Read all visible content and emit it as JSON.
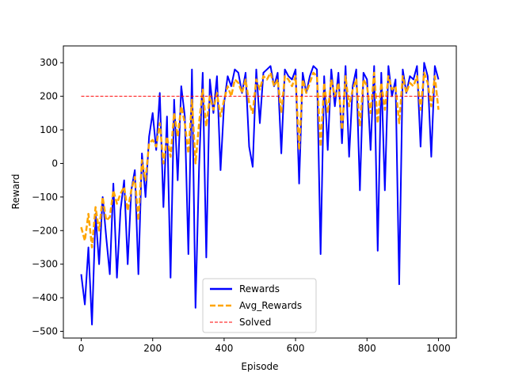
{
  "chart_data": {
    "type": "line",
    "title": "",
    "xlabel": "Episode",
    "ylabel": "Reward",
    "xlim": [
      -50,
      1050
    ],
    "ylim": [
      -520,
      350
    ],
    "x_ticks": [
      0,
      200,
      400,
      600,
      800,
      1000
    ],
    "y_ticks": [
      -500,
      -400,
      -300,
      -200,
      -100,
      0,
      100,
      200,
      300
    ],
    "legend_position": "lower-center",
    "series": [
      {
        "name": "Rewards",
        "color": "#0000ff",
        "style": "solid",
        "x": [
          0,
          10,
          20,
          30,
          40,
          50,
          60,
          70,
          80,
          90,
          100,
          110,
          120,
          130,
          140,
          150,
          160,
          170,
          180,
          190,
          200,
          210,
          220,
          230,
          240,
          250,
          260,
          270,
          280,
          290,
          300,
          310,
          320,
          330,
          340,
          350,
          360,
          370,
          380,
          390,
          400,
          410,
          420,
          430,
          440,
          450,
          460,
          470,
          480,
          490,
          500,
          510,
          520,
          530,
          540,
          550,
          560,
          570,
          580,
          590,
          600,
          610,
          620,
          630,
          640,
          650,
          660,
          670,
          680,
          690,
          700,
          710,
          720,
          730,
          740,
          750,
          760,
          770,
          780,
          790,
          800,
          810,
          820,
          830,
          840,
          850,
          860,
          870,
          880,
          890,
          900,
          910,
          920,
          930,
          940,
          950,
          960,
          970,
          980,
          990,
          1000
        ],
        "y": [
          -330,
          -420,
          -250,
          -480,
          -150,
          -300,
          -100,
          -220,
          -330,
          -60,
          -340,
          -140,
          -50,
          -300,
          -80,
          -20,
          -330,
          30,
          -100,
          80,
          150,
          40,
          210,
          -130,
          140,
          -340,
          190,
          -50,
          230,
          140,
          -270,
          280,
          -430,
          -10,
          270,
          -280,
          250,
          150,
          260,
          -20,
          180,
          260,
          230,
          280,
          270,
          210,
          270,
          50,
          -10,
          280,
          120,
          270,
          280,
          290,
          230,
          270,
          30,
          280,
          260,
          250,
          280,
          -60,
          270,
          210,
          260,
          290,
          280,
          -270,
          260,
          40,
          280,
          170,
          270,
          60,
          290,
          20,
          230,
          280,
          -80,
          270,
          250,
          40,
          290,
          -260,
          270,
          -80,
          290,
          200,
          250,
          -360,
          280,
          210,
          260,
          250,
          290,
          50,
          300,
          260,
          20,
          290,
          250
        ]
      },
      {
        "name": "Avg_Rewards",
        "color": "#ffa500",
        "style": "dashed",
        "x": [
          0,
          10,
          20,
          30,
          40,
          50,
          60,
          70,
          80,
          90,
          100,
          110,
          120,
          130,
          140,
          150,
          160,
          170,
          180,
          190,
          200,
          210,
          220,
          230,
          240,
          250,
          260,
          270,
          280,
          290,
          300,
          310,
          320,
          330,
          340,
          350,
          360,
          370,
          380,
          390,
          400,
          410,
          420,
          430,
          440,
          450,
          460,
          470,
          480,
          490,
          500,
          510,
          520,
          530,
          540,
          550,
          560,
          570,
          580,
          590,
          600,
          610,
          620,
          630,
          640,
          650,
          660,
          670,
          680,
          690,
          700,
          710,
          720,
          730,
          740,
          750,
          760,
          770,
          780,
          790,
          800,
          810,
          820,
          830,
          840,
          850,
          860,
          870,
          880,
          890,
          900,
          910,
          920,
          930,
          940,
          950,
          960,
          970,
          980,
          990,
          1000
        ],
        "y": [
          -190,
          -230,
          -150,
          -250,
          -130,
          -200,
          -100,
          -170,
          -160,
          -80,
          -120,
          -90,
          -70,
          -140,
          -80,
          -40,
          -170,
          10,
          -50,
          60,
          70,
          50,
          120,
          0,
          80,
          20,
          150,
          80,
          170,
          120,
          30,
          190,
          0,
          120,
          220,
          110,
          200,
          160,
          210,
          140,
          190,
          230,
          200,
          250,
          240,
          210,
          250,
          180,
          150,
          250,
          220,
          260,
          250,
          270,
          230,
          250,
          150,
          260,
          250,
          230,
          260,
          40,
          250,
          210,
          240,
          270,
          260,
          50,
          240,
          150,
          250,
          200,
          240,
          100,
          260,
          170,
          220,
          250,
          110,
          250,
          230,
          150,
          270,
          120,
          240,
          160,
          260,
          220,
          230,
          120,
          260,
          210,
          240,
          230,
          260,
          160,
          270,
          240,
          170,
          260,
          160
        ]
      },
      {
        "name": "Solved",
        "color": "#ff0000",
        "style": "dashed",
        "x": [
          0,
          1000
        ],
        "y": [
          200,
          200
        ]
      }
    ]
  }
}
